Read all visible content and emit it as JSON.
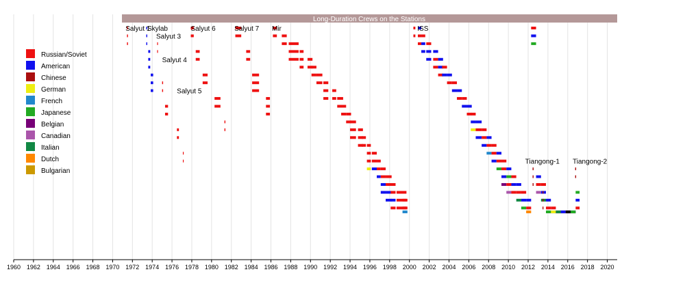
{
  "chart_data": {
    "type": "timeline",
    "title": "Long-Duration Crews on the Stations",
    "xlim": [
      1960,
      2021
    ],
    "xticks": [
      1960,
      1962,
      1964,
      1966,
      1968,
      1970,
      1972,
      1974,
      1976,
      1978,
      1980,
      1982,
      1984,
      1986,
      1988,
      1990,
      1992,
      1994,
      1996,
      1998,
      2000,
      2002,
      2004,
      2006,
      2008,
      2010,
      2012,
      2014,
      2016,
      2018,
      2020
    ],
    "grid": "vertical",
    "legend_position": "left",
    "legend": [
      {
        "name": "Russian/Soviet",
        "color": "#ee1111"
      },
      {
        "name": "American",
        "color": "#1111ee"
      },
      {
        "name": "Chinese",
        "color": "#aa0f0f"
      },
      {
        "name": "German",
        "color": "#eeee11"
      },
      {
        "name": "French",
        "color": "#2288cc"
      },
      {
        "name": "Japanese",
        "color": "#22aa22"
      },
      {
        "name": "Belgian",
        "color": "#770077"
      },
      {
        "name": "Canadian",
        "color": "#aa55aa"
      },
      {
        "name": "Italian",
        "color": "#118844"
      },
      {
        "name": "Dutch",
        "color": "#ff8800"
      },
      {
        "name": "Bulgarian",
        "color": "#cc9900"
      }
    ],
    "nationality_colors": {
      "R": "#ee1111",
      "A": "#1111ee",
      "C": "#aa0f0f",
      "G": "#eeee11",
      "F": "#2288cc",
      "J": "#22aa22",
      "B": "#770077",
      "K": "#aa55aa",
      "I": "#118844",
      "D": "#ff8800",
      "U": "#cc9900",
      "X": "#000000"
    },
    "stations": [
      {
        "name": "Salyut 1",
        "year": 1971.3,
        "row": 0
      },
      {
        "name": "Skylab",
        "year": 1973.5,
        "row": 0
      },
      {
        "name": "Salyut 3",
        "year": 1974.4,
        "row": 1
      },
      {
        "name": "Salyut 4",
        "year": 1975.0,
        "row": 4
      },
      {
        "name": "Salyut 5",
        "year": 1976.5,
        "row": 8
      },
      {
        "name": "Salyut 6",
        "year": 1977.9,
        "row": 0
      },
      {
        "name": "Salyut 7",
        "year": 1982.3,
        "row": 0
      },
      {
        "name": "Mir",
        "year": 1986.1,
        "row": 0
      },
      {
        "name": "ISS",
        "year": 2000.8,
        "row": 0
      },
      {
        "name": "Tiangong-1",
        "year": 2011.7,
        "row": 17
      },
      {
        "name": "Tiangong-2",
        "year": 2016.5,
        "row": 17
      }
    ],
    "expeditions": [
      {
        "start": 1971.45,
        "end": 1971.55,
        "nat": [
          "R",
          "R",
          "R"
        ]
      },
      {
        "start": 1973.4,
        "end": 1973.5,
        "nat": [
          "A",
          "A",
          "A"
        ]
      },
      {
        "start": 1973.6,
        "end": 1973.8,
        "nat": [
          "A",
          "A",
          "A"
        ]
      },
      {
        "start": 1973.85,
        "end": 1974.1,
        "nat": [
          "A",
          "A",
          "A"
        ]
      },
      {
        "start": 1974.5,
        "end": 1974.55,
        "nat": [
          "R",
          "R"
        ]
      },
      {
        "start": 1975.0,
        "end": 1975.1,
        "nat": [
          "R",
          "R"
        ]
      },
      {
        "start": 1975.3,
        "end": 1975.6,
        "nat": [
          "R",
          "R"
        ]
      },
      {
        "start": 1976.5,
        "end": 1976.7,
        "nat": [
          "R",
          "R"
        ]
      },
      {
        "start": 1977.1,
        "end": 1977.15,
        "nat": [
          "R",
          "R"
        ]
      },
      {
        "start": 1977.9,
        "end": 1978.2,
        "nat": [
          "R",
          "R"
        ]
      },
      {
        "start": 1978.4,
        "end": 1978.8,
        "nat": [
          "R",
          "R"
        ]
      },
      {
        "start": 1979.1,
        "end": 1979.6,
        "nat": [
          "R",
          "R"
        ]
      },
      {
        "start": 1980.3,
        "end": 1980.9,
        "nat": [
          "R",
          "R"
        ]
      },
      {
        "start": 1981.3,
        "end": 1981.4,
        "nat": [
          "R",
          "R"
        ]
      },
      {
        "start": 1982.4,
        "end": 1983.0,
        "nat": [
          "R",
          "R"
        ]
      },
      {
        "start": 1983.5,
        "end": 1983.9,
        "nat": [
          "R",
          "R"
        ]
      },
      {
        "start": 1984.1,
        "end": 1984.8,
        "nat": [
          "R",
          "R",
          "R"
        ]
      },
      {
        "start": 1985.5,
        "end": 1985.9,
        "nat": [
          "R",
          "R",
          "R"
        ]
      },
      {
        "start": 1986.2,
        "end": 1986.6,
        "nat": [
          "R",
          "R"
        ]
      },
      {
        "start": 1987.1,
        "end": 1987.6,
        "nat": [
          "R",
          "R"
        ]
      },
      {
        "start": 1987.8,
        "end": 1988.8,
        "nat": [
          "R",
          "R",
          "R"
        ]
      },
      {
        "start": 1988.9,
        "end": 1989.3,
        "nat": [
          "R",
          "R",
          "R"
        ]
      },
      {
        "start": 1989.7,
        "end": 1990.2,
        "nat": [
          "R",
          "R"
        ]
      },
      {
        "start": 1990.1,
        "end": 1990.6,
        "nat": [
          "R",
          "R"
        ]
      },
      {
        "start": 1990.6,
        "end": 1991.2,
        "nat": [
          "R",
          "R"
        ]
      },
      {
        "start": 1991.3,
        "end": 1991.8,
        "nat": [
          "R",
          "R",
          "R"
        ]
      },
      {
        "start": 1992.2,
        "end": 1992.6,
        "nat": [
          "R",
          "R"
        ]
      },
      {
        "start": 1992.7,
        "end": 1993.3,
        "nat": [
          "R",
          "R"
        ]
      },
      {
        "start": 1993.1,
        "end": 1993.6,
        "nat": [
          "R",
          "R"
        ]
      },
      {
        "start": 1993.6,
        "end": 1994.1,
        "nat": [
          "R",
          "R"
        ]
      },
      {
        "start": 1994.0,
        "end": 1994.6,
        "nat": [
          "R",
          "R",
          "R"
        ]
      },
      {
        "start": 1994.8,
        "end": 1995.3,
        "nat": [
          "R",
          "R",
          "R"
        ]
      },
      {
        "start": 1995.2,
        "end": 1995.6,
        "nat": [
          "R",
          "R"
        ]
      },
      {
        "start": 1995.7,
        "end": 1996.1,
        "nat": [
          "R",
          "R",
          "R",
          "G"
        ]
      },
      {
        "start": 1996.2,
        "end": 1996.7,
        "nat": [
          "R",
          "R",
          "A"
        ]
      },
      {
        "start": 1996.7,
        "end": 1997.1,
        "nat": [
          "R",
          "R",
          "A"
        ]
      },
      {
        "start": 1997.1,
        "end": 1997.6,
        "nat": [
          "R",
          "R",
          "A",
          "A"
        ]
      },
      {
        "start": 1997.6,
        "end": 1998.2,
        "nat": [
          "R",
          "R",
          "A",
          "A"
        ]
      },
      {
        "start": 1998.1,
        "end": 1998.6,
        "nat": [
          "R",
          "R",
          "A",
          "R"
        ]
      },
      {
        "start": 1998.7,
        "end": 1999.7,
        "nat": [
          "R",
          "R",
          "R"
        ]
      },
      {
        "start": 1999.3,
        "end": 1999.8,
        "nat": [
          "R",
          "R",
          "F"
        ]
      },
      {
        "start": 2000.4,
        "end": 2000.6,
        "nat": [
          "R",
          "R"
        ]
      },
      {
        "start": 2000.85,
        "end": 2001.2,
        "nat": [
          "A",
          "R",
          "R"
        ]
      },
      {
        "start": 2001.2,
        "end": 2001.6,
        "nat": [
          "R",
          "A",
          "A"
        ]
      },
      {
        "start": 2001.7,
        "end": 2002.2,
        "nat": [
          "R",
          "A",
          "A"
        ]
      },
      {
        "start": 2002.4,
        "end": 2002.9,
        "nat": [
          "A",
          "R",
          "R"
        ]
      },
      {
        "start": 2002.9,
        "end": 2003.4,
        "nat": [
          "A",
          "A",
          "R"
        ]
      },
      {
        "start": 2003.3,
        "end": 2003.8,
        "nat": [
          "R",
          "A"
        ]
      },
      {
        "start": 2003.8,
        "end": 2004.3,
        "nat": [
          "A",
          "R"
        ]
      },
      {
        "start": 2004.3,
        "end": 2004.8,
        "nat": [
          "R",
          "A"
        ]
      },
      {
        "start": 2004.8,
        "end": 2005.3,
        "nat": [
          "A",
          "R"
        ]
      },
      {
        "start": 2005.3,
        "end": 2005.8,
        "nat": [
          "R",
          "A"
        ]
      },
      {
        "start": 2005.8,
        "end": 2006.3,
        "nat": [
          "A",
          "R"
        ]
      },
      {
        "start": 2006.2,
        "end": 2006.7,
        "nat": [
          "R",
          "A",
          "G"
        ]
      },
      {
        "start": 2006.7,
        "end": 2007.3,
        "nat": [
          "A",
          "R",
          "A"
        ]
      },
      {
        "start": 2007.3,
        "end": 2007.8,
        "nat": [
          "R",
          "R",
          "A"
        ]
      },
      {
        "start": 2007.8,
        "end": 2008.3,
        "nat": [
          "A",
          "R",
          "F"
        ]
      },
      {
        "start": 2008.3,
        "end": 2008.8,
        "nat": [
          "R",
          "R",
          "A"
        ]
      },
      {
        "start": 2008.8,
        "end": 2009.3,
        "nat": [
          "A",
          "R",
          "J"
        ]
      },
      {
        "start": 2009.3,
        "end": 2009.8,
        "nat": [
          "R",
          "R",
          "A",
          "B"
        ]
      },
      {
        "start": 2009.8,
        "end": 2010.3,
        "nat": [
          "A",
          "J",
          "R",
          "K"
        ]
      },
      {
        "start": 2010.3,
        "end": 2010.8,
        "nat": [
          "R",
          "A",
          "R"
        ]
      },
      {
        "start": 2010.8,
        "end": 2011.3,
        "nat": [
          "A",
          "R",
          "I"
        ]
      },
      {
        "start": 2011.3,
        "end": 2011.8,
        "nat": [
          "R",
          "A",
          "J"
        ]
      },
      {
        "start": 2011.8,
        "end": 2012.3,
        "nat": [
          "A",
          "R",
          "D"
        ]
      },
      {
        "start": 2012.3,
        "end": 2012.8,
        "nat": [
          "R",
          "A",
          "J"
        ]
      },
      {
        "start": 2012.8,
        "end": 2013.3,
        "nat": [
          "A",
          "R",
          "K"
        ]
      },
      {
        "start": 2013.3,
        "end": 2013.8,
        "nat": [
          "R",
          "A",
          "I"
        ]
      },
      {
        "start": 2013.8,
        "end": 2014.3,
        "nat": [
          "A",
          "R",
          "J"
        ]
      },
      {
        "start": 2014.3,
        "end": 2014.8,
        "nat": [
          "R",
          "A",
          "G"
        ]
      },
      {
        "start": 2014.8,
        "end": 2015.3,
        "nat": [
          "A",
          "R",
          "I"
        ]
      },
      {
        "start": 2015.3,
        "end": 2015.8,
        "nat": [
          "R",
          "J",
          "A"
        ]
      },
      {
        "start": 2015.8,
        "end": 2016.3,
        "nat": [
          "A",
          "R",
          "X"
        ]
      },
      {
        "start": 2016.3,
        "end": 2016.8,
        "nat": [
          "R",
          "A",
          "J"
        ]
      },
      {
        "start": 2016.8,
        "end": 2017.2,
        "nat": [
          "J",
          "A",
          "R"
        ]
      },
      {
        "start": 2012.45,
        "end": 2012.55,
        "nat": [
          "C",
          "C",
          "C"
        ]
      },
      {
        "start": 2013.45,
        "end": 2013.55,
        "nat": [
          "C",
          "C",
          "C"
        ]
      },
      {
        "start": 2016.75,
        "end": 2016.85,
        "nat": [
          "C",
          "C"
        ]
      }
    ]
  }
}
